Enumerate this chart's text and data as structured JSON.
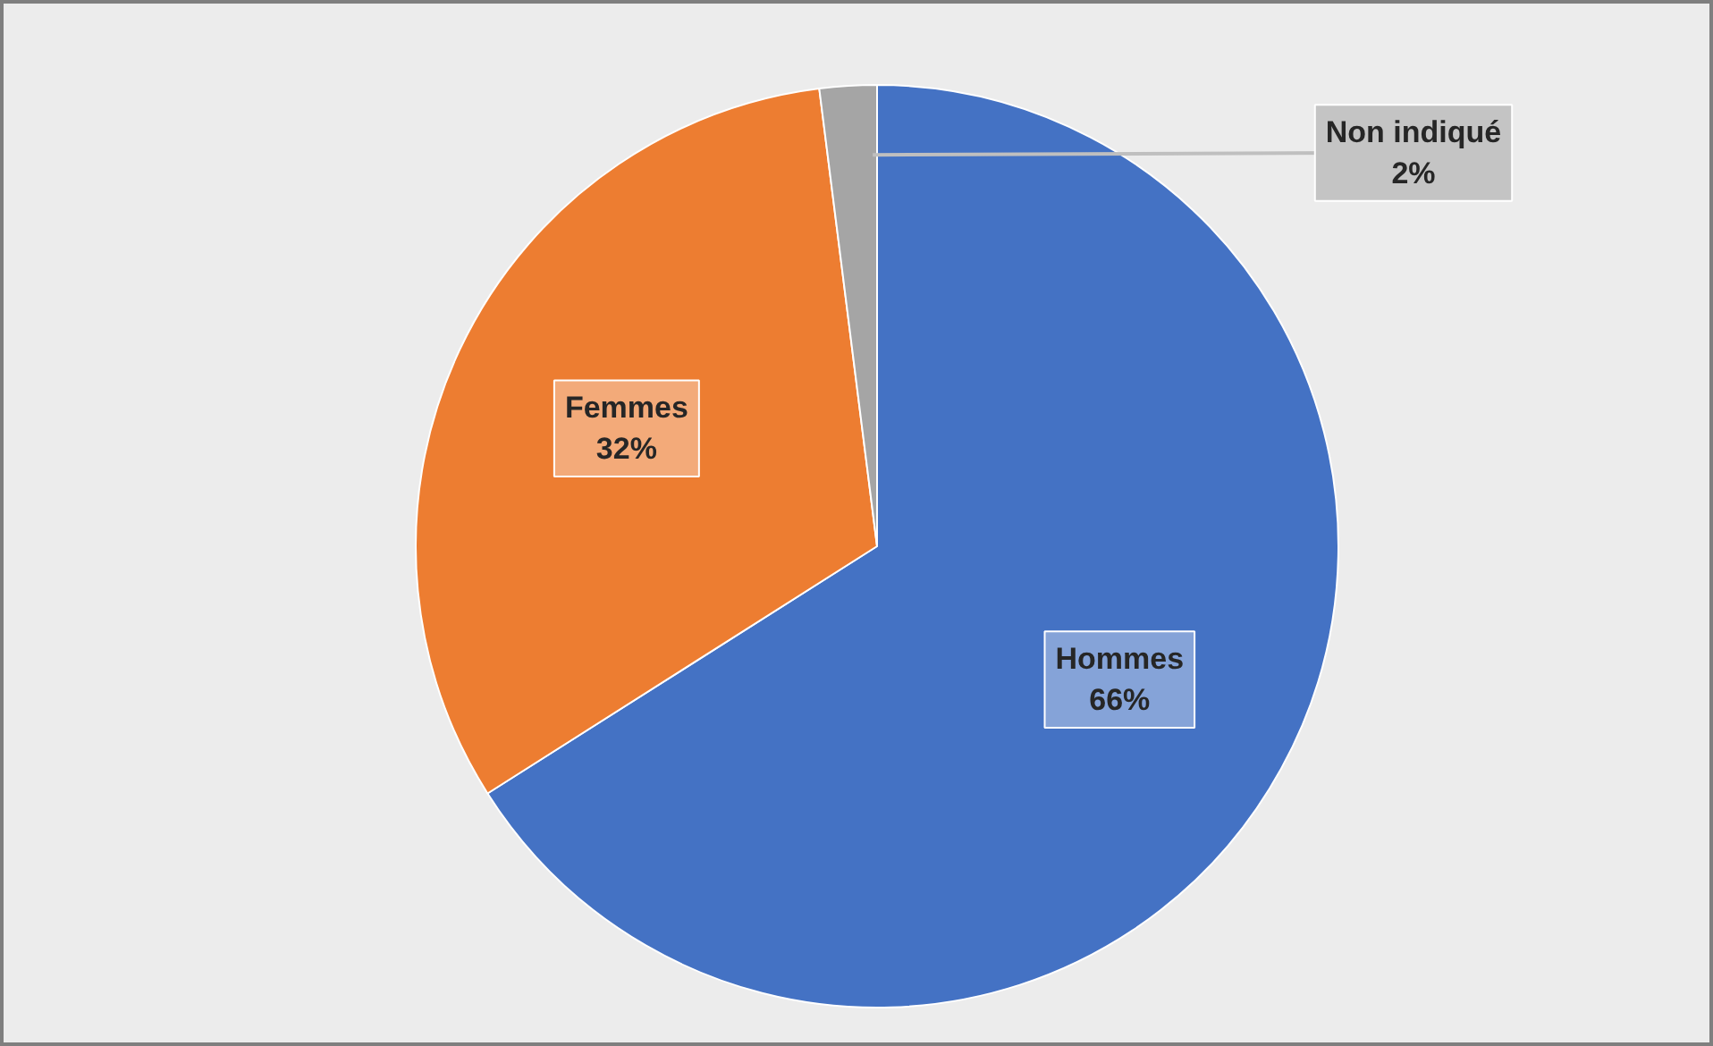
{
  "chart_data": {
    "type": "pie",
    "categories": [
      "Hommes",
      "Femmes",
      "Non indiqué"
    ],
    "values": [
      66,
      32,
      2
    ],
    "value_labels": [
      "66%",
      "32%",
      "2%"
    ],
    "colors": [
      "#4472c4",
      "#ed7d31",
      "#a5a5a5"
    ]
  }
}
